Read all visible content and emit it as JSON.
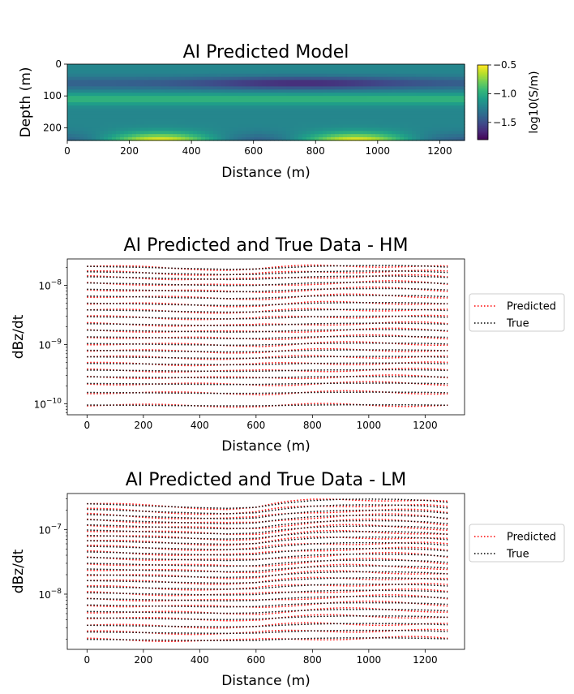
{
  "chart_data": [
    {
      "type": "heatmap",
      "title": "AI Predicted Model",
      "xlabel": "Distance (m)",
      "ylabel": "Depth (m)",
      "xlim": [
        0,
        1280
      ],
      "ylim": [
        240,
        0
      ],
      "xticks": [
        "0",
        "200",
        "400",
        "600",
        "800",
        "1000",
        "1200"
      ],
      "yticks": [
        "0",
        "100",
        "200"
      ],
      "colormap": "viridis",
      "colorbar": {
        "label": "log10(S/m)",
        "range": [
          -1.8,
          -0.5
        ],
        "ticks": [
          "−0.5",
          "−1.0",
          "−1.5"
        ]
      },
      "description_values": {
        "background_log10_conductivity": -1.2,
        "conductive_layer_depth_m": 110,
        "conductive_layer_log10": -0.95,
        "resistive_band_depth_m": 60,
        "resistive_band_center_x_m": 760,
        "resistive_band_log10": -1.65,
        "deep_conductive_peaks_x_m": [
          300,
          930
        ],
        "deep_conductive_peak_log10": -0.5
      }
    },
    {
      "type": "line",
      "title": "AI Predicted and True Data - HM",
      "xlabel": "Distance (m)",
      "ylabel": "dBz/dt",
      "yscale": "log",
      "xlim": [
        -70,
        1340
      ],
      "ylim": [
        6.5e-11,
        2.8e-08
      ],
      "xticks": [
        "0",
        "200",
        "400",
        "600",
        "800",
        "1000",
        "1200"
      ],
      "yticks": [
        {
          "value": 1e-08,
          "base": "10",
          "exp": "−8"
        },
        {
          "value": 1e-09,
          "base": "10",
          "exp": "−9"
        },
        {
          "value": 1e-10,
          "base": "10",
          "exp": "−10"
        }
      ],
      "x": [
        0,
        100,
        200,
        300,
        400,
        500,
        600,
        700,
        800,
        900,
        1000,
        1100,
        1200,
        1280
      ],
      "gate_amplitudes": [
        2.1e-08,
        1.7e-08,
        1.4e-08,
        1.1e-08,
        8.6e-09,
        6.6e-09,
        5e-09,
        3.85e-09,
        2.95e-09,
        2.25e-09,
        1.75e-09,
        1.35e-09,
        1.04e-09,
        8e-10,
        6.2e-10,
        4.8e-10,
        3.7e-10,
        2.85e-10,
        2.2e-10,
        1.55e-10,
        9.5e-11
      ],
      "profile_shape": [
        1.0,
        0.98,
        0.96,
        0.93,
        0.91,
        0.89,
        0.9,
        0.95,
        1.0,
        1.02,
        1.03,
        1.03,
        1.01,
        0.97
      ],
      "legend": [
        "Predicted",
        "True"
      ],
      "legend_placement": "outside-right",
      "series_colors": {
        "Predicted": "#ff0000",
        "True": "#000000"
      }
    },
    {
      "type": "line",
      "title": "AI Predicted and True Data - LM",
      "xlabel": "Distance (m)",
      "ylabel": "dBz/dt",
      "yscale": "log",
      "xlim": [
        -70,
        1340
      ],
      "ylim": [
        1.4e-09,
        3.6e-07
      ],
      "xticks": [
        "0",
        "200",
        "400",
        "600",
        "800",
        "1000",
        "1200"
      ],
      "yticks": [
        {
          "value": 1e-07,
          "base": "10",
          "exp": "−7"
        },
        {
          "value": 1e-08,
          "base": "10",
          "exp": "−8"
        }
      ],
      "x": [
        0,
        100,
        200,
        300,
        400,
        500,
        600,
        700,
        800,
        900,
        1000,
        1100,
        1200,
        1280
      ],
      "gate_amplitudes": [
        2.5e-07,
        2.05e-07,
        1.7e-07,
        1.42e-07,
        1.18e-07,
        9.8e-08,
        8.1e-08,
        6.7e-08,
        5.5e-08,
        4.5e-08,
        3.7e-08,
        3e-08,
        2.45e-08,
        2e-08,
        1.62e-08,
        1.3e-08,
        1.05e-08,
        8.5e-09,
        6.8e-09,
        5.4e-09,
        4.3e-09,
        3.3e-09,
        2.6e-09,
        2e-09
      ],
      "profile_shape": [
        1.0,
        0.97,
        0.93,
        0.9,
        0.87,
        0.85,
        0.88,
        1.02,
        1.12,
        1.17,
        1.18,
        1.17,
        1.13,
        1.05
      ],
      "legend": [
        "Predicted",
        "True"
      ],
      "legend_placement": "outside-right",
      "series_colors": {
        "Predicted": "#ff0000",
        "True": "#000000"
      }
    }
  ]
}
